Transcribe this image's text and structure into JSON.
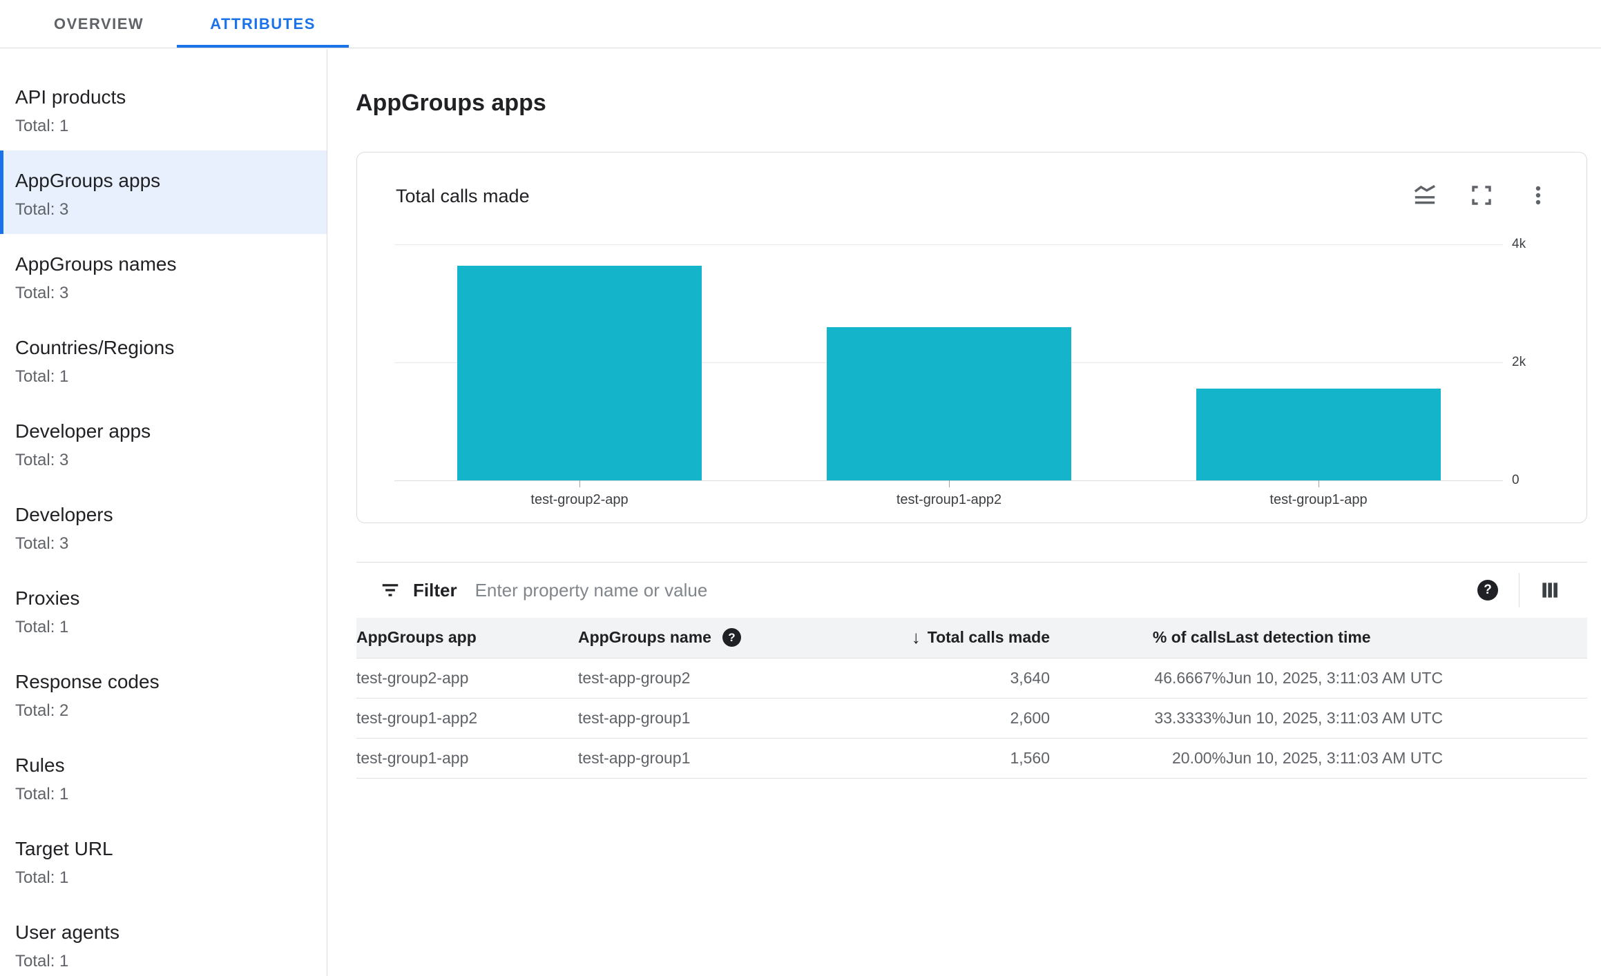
{
  "tabs": {
    "overview": "OVERVIEW",
    "attributes": "ATTRIBUTES"
  },
  "sidebar": {
    "selected": "AppGroups apps",
    "items": [
      {
        "label": "API products",
        "total": "Total: 1"
      },
      {
        "label": "AppGroups apps",
        "total": "Total: 3"
      },
      {
        "label": "AppGroups names",
        "total": "Total: 3"
      },
      {
        "label": "Countries/Regions",
        "total": "Total: 1"
      },
      {
        "label": "Developer apps",
        "total": "Total: 3"
      },
      {
        "label": "Developers",
        "total": "Total: 3"
      },
      {
        "label": "Proxies",
        "total": "Total: 1"
      },
      {
        "label": "Response codes",
        "total": "Total: 2"
      },
      {
        "label": "Rules",
        "total": "Total: 1"
      },
      {
        "label": "Target URL",
        "total": "Total: 1"
      },
      {
        "label": "User agents",
        "total": "Total: 1"
      }
    ]
  },
  "main": {
    "title": "AppGroups apps"
  },
  "chart_card": {
    "title": "Total calls made",
    "icons": [
      "stacked-line-chart-icon",
      "fullscreen-icon",
      "more-vert-icon"
    ]
  },
  "chart_data": {
    "type": "bar",
    "title": "Total calls made",
    "categories": [
      "test-group2-app",
      "test-group1-app2",
      "test-group1-app"
    ],
    "values": [
      3640,
      2600,
      1560
    ],
    "xlabel": "",
    "ylabel": "",
    "ylim": [
      0,
      4000
    ],
    "yticks": [
      {
        "value": 4000,
        "label": "4k"
      },
      {
        "value": 2000,
        "label": "2k"
      },
      {
        "value": 0,
        "label": "0"
      }
    ],
    "grid": true,
    "bar_color": "#14b4ca",
    "legend": "none"
  },
  "filter": {
    "label": "Filter",
    "placeholder": "Enter property name or value",
    "help_glyph": "?",
    "columns_icon": "view-columns-icon"
  },
  "table": {
    "columns": [
      {
        "label": "AppGroups app"
      },
      {
        "label": "AppGroups name",
        "help_glyph": "?"
      },
      {
        "label": "Total calls made",
        "sort": "desc",
        "sort_glyph": "↓"
      },
      {
        "label": "% of calls"
      },
      {
        "label": "Last detection time"
      }
    ],
    "rows": [
      {
        "app": "test-group2-app",
        "name": "test-app-group2",
        "calls": "3,640",
        "pct": "46.6667%",
        "time": "Jun 10, 2025, 3:11:03 AM UTC"
      },
      {
        "app": "test-group1-app2",
        "name": "test-app-group1",
        "calls": "2,600",
        "pct": "33.3333%",
        "time": "Jun 10, 2025, 3:11:03 AM UTC"
      },
      {
        "app": "test-group1-app",
        "name": "test-app-group1",
        "calls": "1,560",
        "pct": "20.00%",
        "time": "Jun 10, 2025, 3:11:03 AM UTC"
      }
    ]
  },
  "colors": {
    "accent_blue": "#1a73e8",
    "selected_bg": "#e8f0fe",
    "bar_teal": "#14b4ca",
    "border": "#dadce0",
    "header_bg": "#f1f3f4",
    "text_primary": "#202124",
    "text_secondary": "#5f6368"
  }
}
